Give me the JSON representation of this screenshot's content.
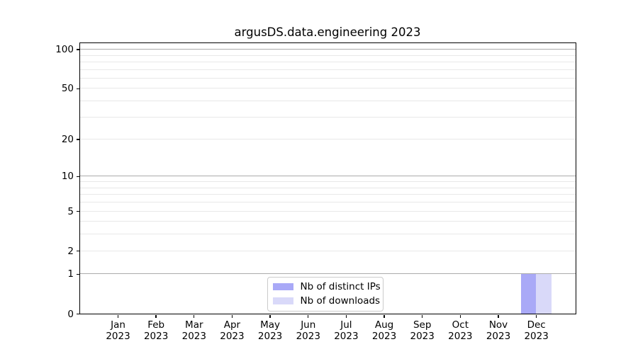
{
  "title": "argusDS.data.engineering 2023",
  "chart_data": {
    "type": "bar",
    "title": "argusDS.data.engineering 2023",
    "categories": [
      "Jan",
      "Feb",
      "Mar",
      "Apr",
      "May",
      "Jun",
      "Jul",
      "Aug",
      "Sep",
      "Oct",
      "Nov",
      "Dec"
    ],
    "category_year": "2023",
    "series": [
      {
        "name": "Nb of distinct IPs",
        "color": "#a9a9f7",
        "values": [
          0,
          0,
          0,
          0,
          0,
          0,
          0,
          0,
          0,
          0,
          0,
          1
        ]
      },
      {
        "name": "Nb of downloads",
        "color": "#d9d9f9",
        "values": [
          0,
          0,
          0,
          0,
          0,
          0,
          0,
          0,
          0,
          0,
          0,
          1
        ]
      }
    ],
    "xlabel": "",
    "ylabel": "",
    "yscale": "log1p",
    "ylim": [
      0,
      112
    ],
    "y_ticks": [
      0,
      1,
      2,
      5,
      10,
      20,
      50,
      100
    ],
    "y_major_gridlines": [
      1,
      10,
      100
    ],
    "y_minor_gridlines": [
      2,
      3,
      4,
      5,
      6,
      7,
      8,
      9,
      20,
      30,
      40,
      50,
      60,
      70,
      80,
      90
    ],
    "grid": true,
    "legend_position": "lower center",
    "bar_width_frac": 0.4,
    "colors": {
      "grid_major": "#ababab",
      "grid_minor": "#e8e8e8",
      "spine": "#000000",
      "legend_border": "#cbcbcb"
    }
  }
}
